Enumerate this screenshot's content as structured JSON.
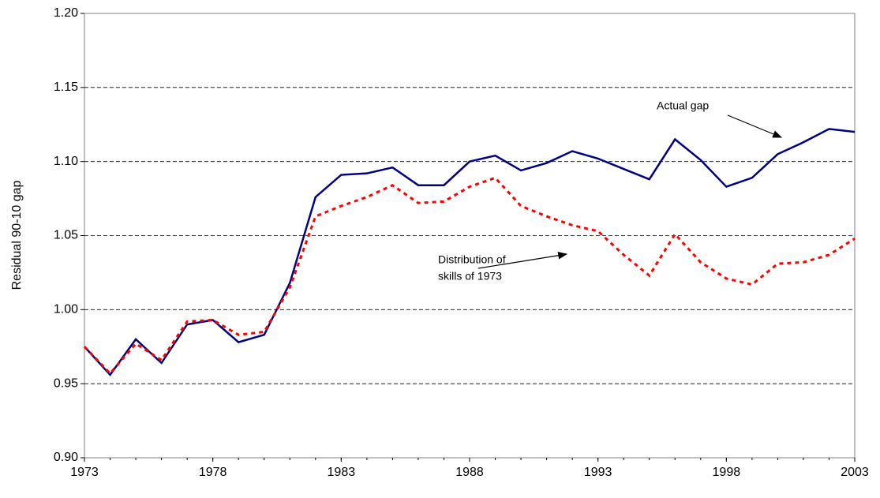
{
  "chart_data": {
    "type": "line",
    "y_label": "Residual 90-10 gap",
    "x": [
      1973,
      1974,
      1975,
      1976,
      1977,
      1978,
      1979,
      1980,
      1981,
      1982,
      1983,
      1984,
      1985,
      1986,
      1987,
      1988,
      1989,
      1990,
      1991,
      1992,
      1993,
      1994,
      1995,
      1996,
      1997,
      1998,
      1999,
      2000,
      2001,
      2002,
      2003
    ],
    "series": [
      {
        "name": "Actual gap",
        "color": "#000080",
        "dash": false,
        "values": [
          0.975,
          0.956,
          0.98,
          0.964,
          0.99,
          0.993,
          0.978,
          0.983,
          1.018,
          1.076,
          1.091,
          1.092,
          1.096,
          1.084,
          1.084,
          1.1,
          1.104,
          1.094,
          1.099,
          1.107,
          1.102,
          1.095,
          1.088,
          1.115,
          1.101,
          1.083,
          1.089,
          1.105,
          1.113,
          1.122,
          1.12
        ]
      },
      {
        "name": "Distribution of skills of 1973",
        "color": "#ff0000",
        "dash": true,
        "values": [
          0.975,
          0.957,
          0.977,
          0.966,
          0.992,
          0.993,
          0.983,
          0.985,
          1.015,
          1.063,
          1.07,
          1.076,
          1.084,
          1.072,
          1.073,
          1.083,
          1.089,
          1.07,
          1.063,
          1.057,
          1.053,
          1.037,
          1.023,
          1.051,
          1.032,
          1.021,
          1.017,
          1.031,
          1.032,
          1.037,
          1.048
        ]
      }
    ],
    "annotations": [
      {
        "lines": [
          "Actual gap"
        ]
      },
      {
        "lines": [
          "Distribution of",
          "skills of 1973"
        ]
      }
    ],
    "xlim": [
      1973,
      2003
    ],
    "xticks": [
      1973,
      1978,
      1983,
      1988,
      1993,
      1998,
      2003
    ],
    "ylim": [
      0.9,
      1.2
    ],
    "yticks": [
      {
        "value": 0.9,
        "label": "0.90"
      },
      0.95,
      {
        "value": 1,
        "label": "1.00"
      },
      1.05,
      {
        "value": 1.1,
        "label": "1.10"
      },
      1.15,
      {
        "value": 1.2,
        "label": "1.20"
      }
    ],
    "grid": true
  }
}
